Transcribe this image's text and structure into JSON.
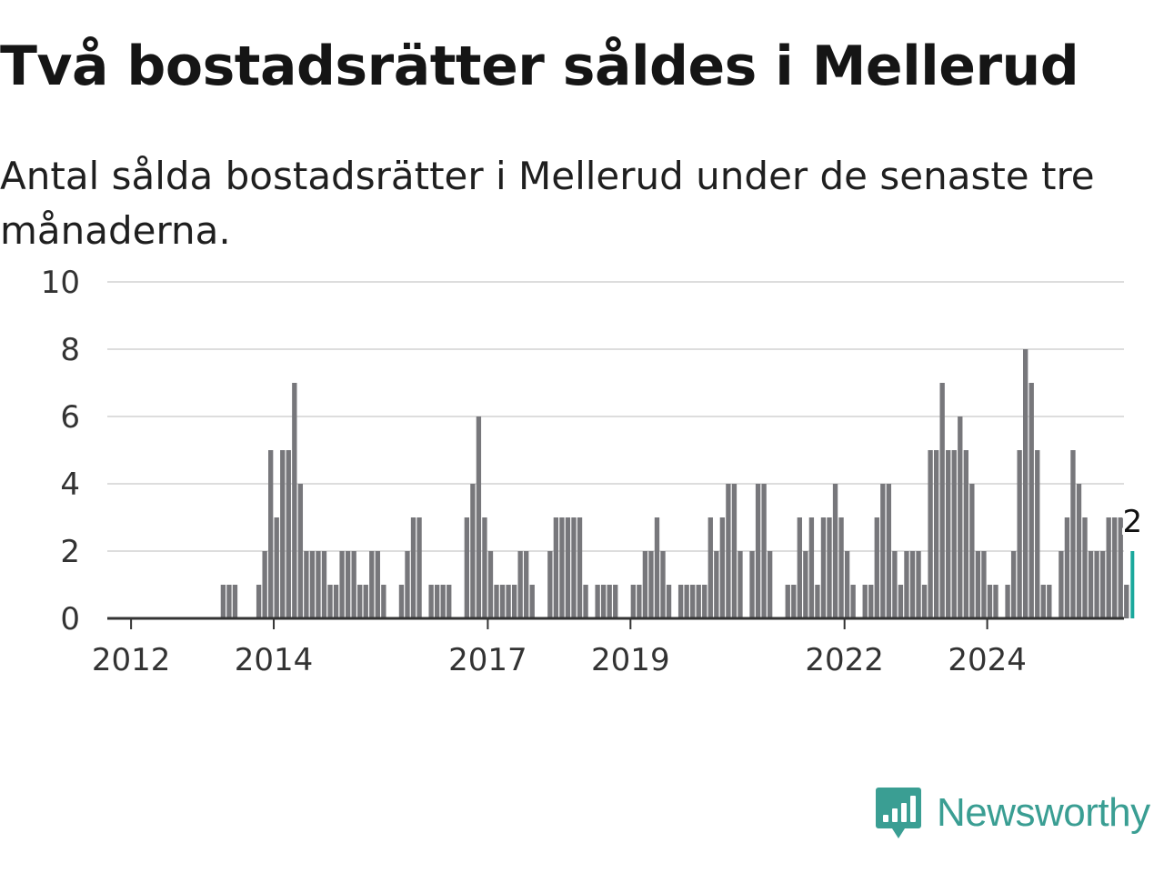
{
  "title": "Två bostadsrätter såldes i Mellerud",
  "subtitle": "Antal sålda bostadsrätter i Mellerud under de senaste tre månaderna.",
  "brand": {
    "name": "Newsworthy",
    "color": "#3a9e93",
    "icon": "newsworthy-logo-icon"
  },
  "chart_data": {
    "type": "bar",
    "title": "Två bostadsrätter såldes i Mellerud",
    "xlabel": "",
    "ylabel": "",
    "ylim": [
      0,
      10
    ],
    "yticks": [
      0,
      2,
      4,
      6,
      8,
      10
    ],
    "xlim": [
      2011.667,
      2025.917
    ],
    "xticks": [
      2012,
      2014,
      2017,
      2019,
      2022,
      2024
    ],
    "xtick_labels": [
      "2012",
      "2014",
      "2017",
      "2019",
      "2022",
      "2024"
    ],
    "grid": true,
    "bar_color": "#77777b",
    "highlight_color": "#1aa89c",
    "highlight_label": "2",
    "x_start": 2011.708,
    "x_step": 0.0833,
    "values": [
      0,
      0,
      0,
      0,
      0,
      0,
      0,
      0,
      0,
      0,
      0,
      0,
      0,
      0,
      0,
      0,
      0,
      0,
      0,
      1,
      1,
      1,
      0,
      0,
      0,
      1,
      2,
      5,
      3,
      5,
      5,
      7,
      4,
      2,
      2,
      2,
      2,
      1,
      1,
      2,
      2,
      2,
      1,
      1,
      2,
      2,
      1,
      0,
      0,
      1,
      2,
      3,
      3,
      0,
      1,
      1,
      1,
      1,
      0,
      0,
      3,
      4,
      6,
      3,
      2,
      1,
      1,
      1,
      1,
      2,
      2,
      1,
      0,
      0,
      2,
      3,
      3,
      3,
      3,
      3,
      1,
      0,
      1,
      1,
      1,
      1,
      0,
      0,
      1,
      1,
      2,
      2,
      3,
      2,
      1,
      0,
      1,
      1,
      1,
      1,
      1,
      3,
      2,
      3,
      4,
      4,
      2,
      0,
      2,
      4,
      4,
      2,
      0,
      0,
      1,
      1,
      3,
      2,
      3,
      1,
      3,
      3,
      4,
      3,
      2,
      1,
      0,
      1,
      1,
      3,
      4,
      4,
      2,
      1,
      2,
      2,
      2,
      1,
      5,
      5,
      7,
      5,
      5,
      6,
      5,
      4,
      2,
      2,
      1,
      1,
      0,
      1,
      2,
      5,
      8,
      7,
      5,
      1,
      1,
      0,
      2,
      3,
      5,
      4,
      3,
      2,
      2,
      2,
      3,
      3,
      3,
      1,
      2
    ]
  }
}
